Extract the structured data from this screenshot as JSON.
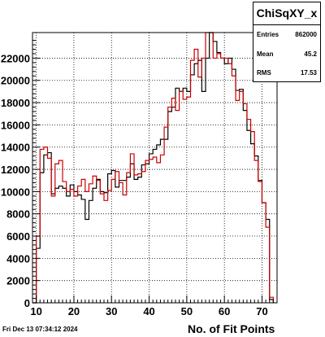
{
  "chart_data": {
    "type": "histogram",
    "title": "",
    "xlabel": "No. of Fit Points",
    "ylabel": "",
    "xlim": [
      9,
      74
    ],
    "ylim": [
      0,
      24300
    ],
    "grid": true,
    "bin_start": 9,
    "bin_width": 1,
    "x_ticks": [
      10,
      20,
      30,
      40,
      50,
      60,
      70
    ],
    "y_ticks": [
      0,
      2000,
      4000,
      6000,
      8000,
      10000,
      12000,
      14000,
      16000,
      18000,
      20000,
      22000
    ],
    "series": [
      {
        "color": "#000000",
        "values": [
          0,
          4900,
          11700,
          13300,
          13500,
          9800,
          10300,
          10500,
          10300,
          9600,
          10600,
          10000,
          9700,
          9300,
          7500,
          9200,
          10300,
          11100,
          10000,
          9900,
          11600,
          11900,
          10400,
          11000,
          11000,
          11300,
          12500,
          11100,
          11300,
          12400,
          12500,
          13400,
          13800,
          14200,
          14700,
          14700,
          17200,
          17600,
          19300,
          19000,
          19300,
          19000,
          20500,
          21500,
          21800,
          19000,
          22000,
          24300,
          23500,
          22500,
          22000,
          21500,
          22000,
          21000,
          19100,
          19200,
          17300,
          15500,
          14300,
          13200,
          11000,
          9000,
          7500,
          300
        ]
      },
      {
        "color": "#cc0000",
        "values": [
          0,
          6000,
          13800,
          14000,
          13000,
          9600,
          12500,
          12800,
          10900,
          10000,
          10200,
          9600,
          10500,
          11100,
          10000,
          10700,
          11400,
          11000,
          9800,
          9200,
          10100,
          11100,
          11800,
          10800,
          9700,
          11700,
          13400,
          11500,
          11600,
          11800,
          12800,
          12900,
          13100,
          12600,
          13300,
          15800,
          17600,
          18400,
          17300,
          19000,
          18300,
          18500,
          21800,
          22800,
          20300,
          22000,
          24300,
          24300,
          22000,
          22400,
          22000,
          22000,
          21500,
          20400,
          18200,
          19000,
          17900,
          16500,
          15400,
          12800,
          10900,
          9000,
          6800,
          500
        ]
      }
    ]
  },
  "stats": {
    "title": "ChiSqXY_x",
    "rows": [
      {
        "label": "Entries",
        "value": "862000"
      },
      {
        "label": "Mean",
        "value": "45.2"
      },
      {
        "label": "RMS",
        "value": "17.53"
      }
    ]
  },
  "footer": {
    "date": "Fri Dec 13 07:34:12 2024"
  },
  "colors": {
    "series_black": "#000000",
    "series_red": "#cc0000",
    "frame": "#000000"
  }
}
